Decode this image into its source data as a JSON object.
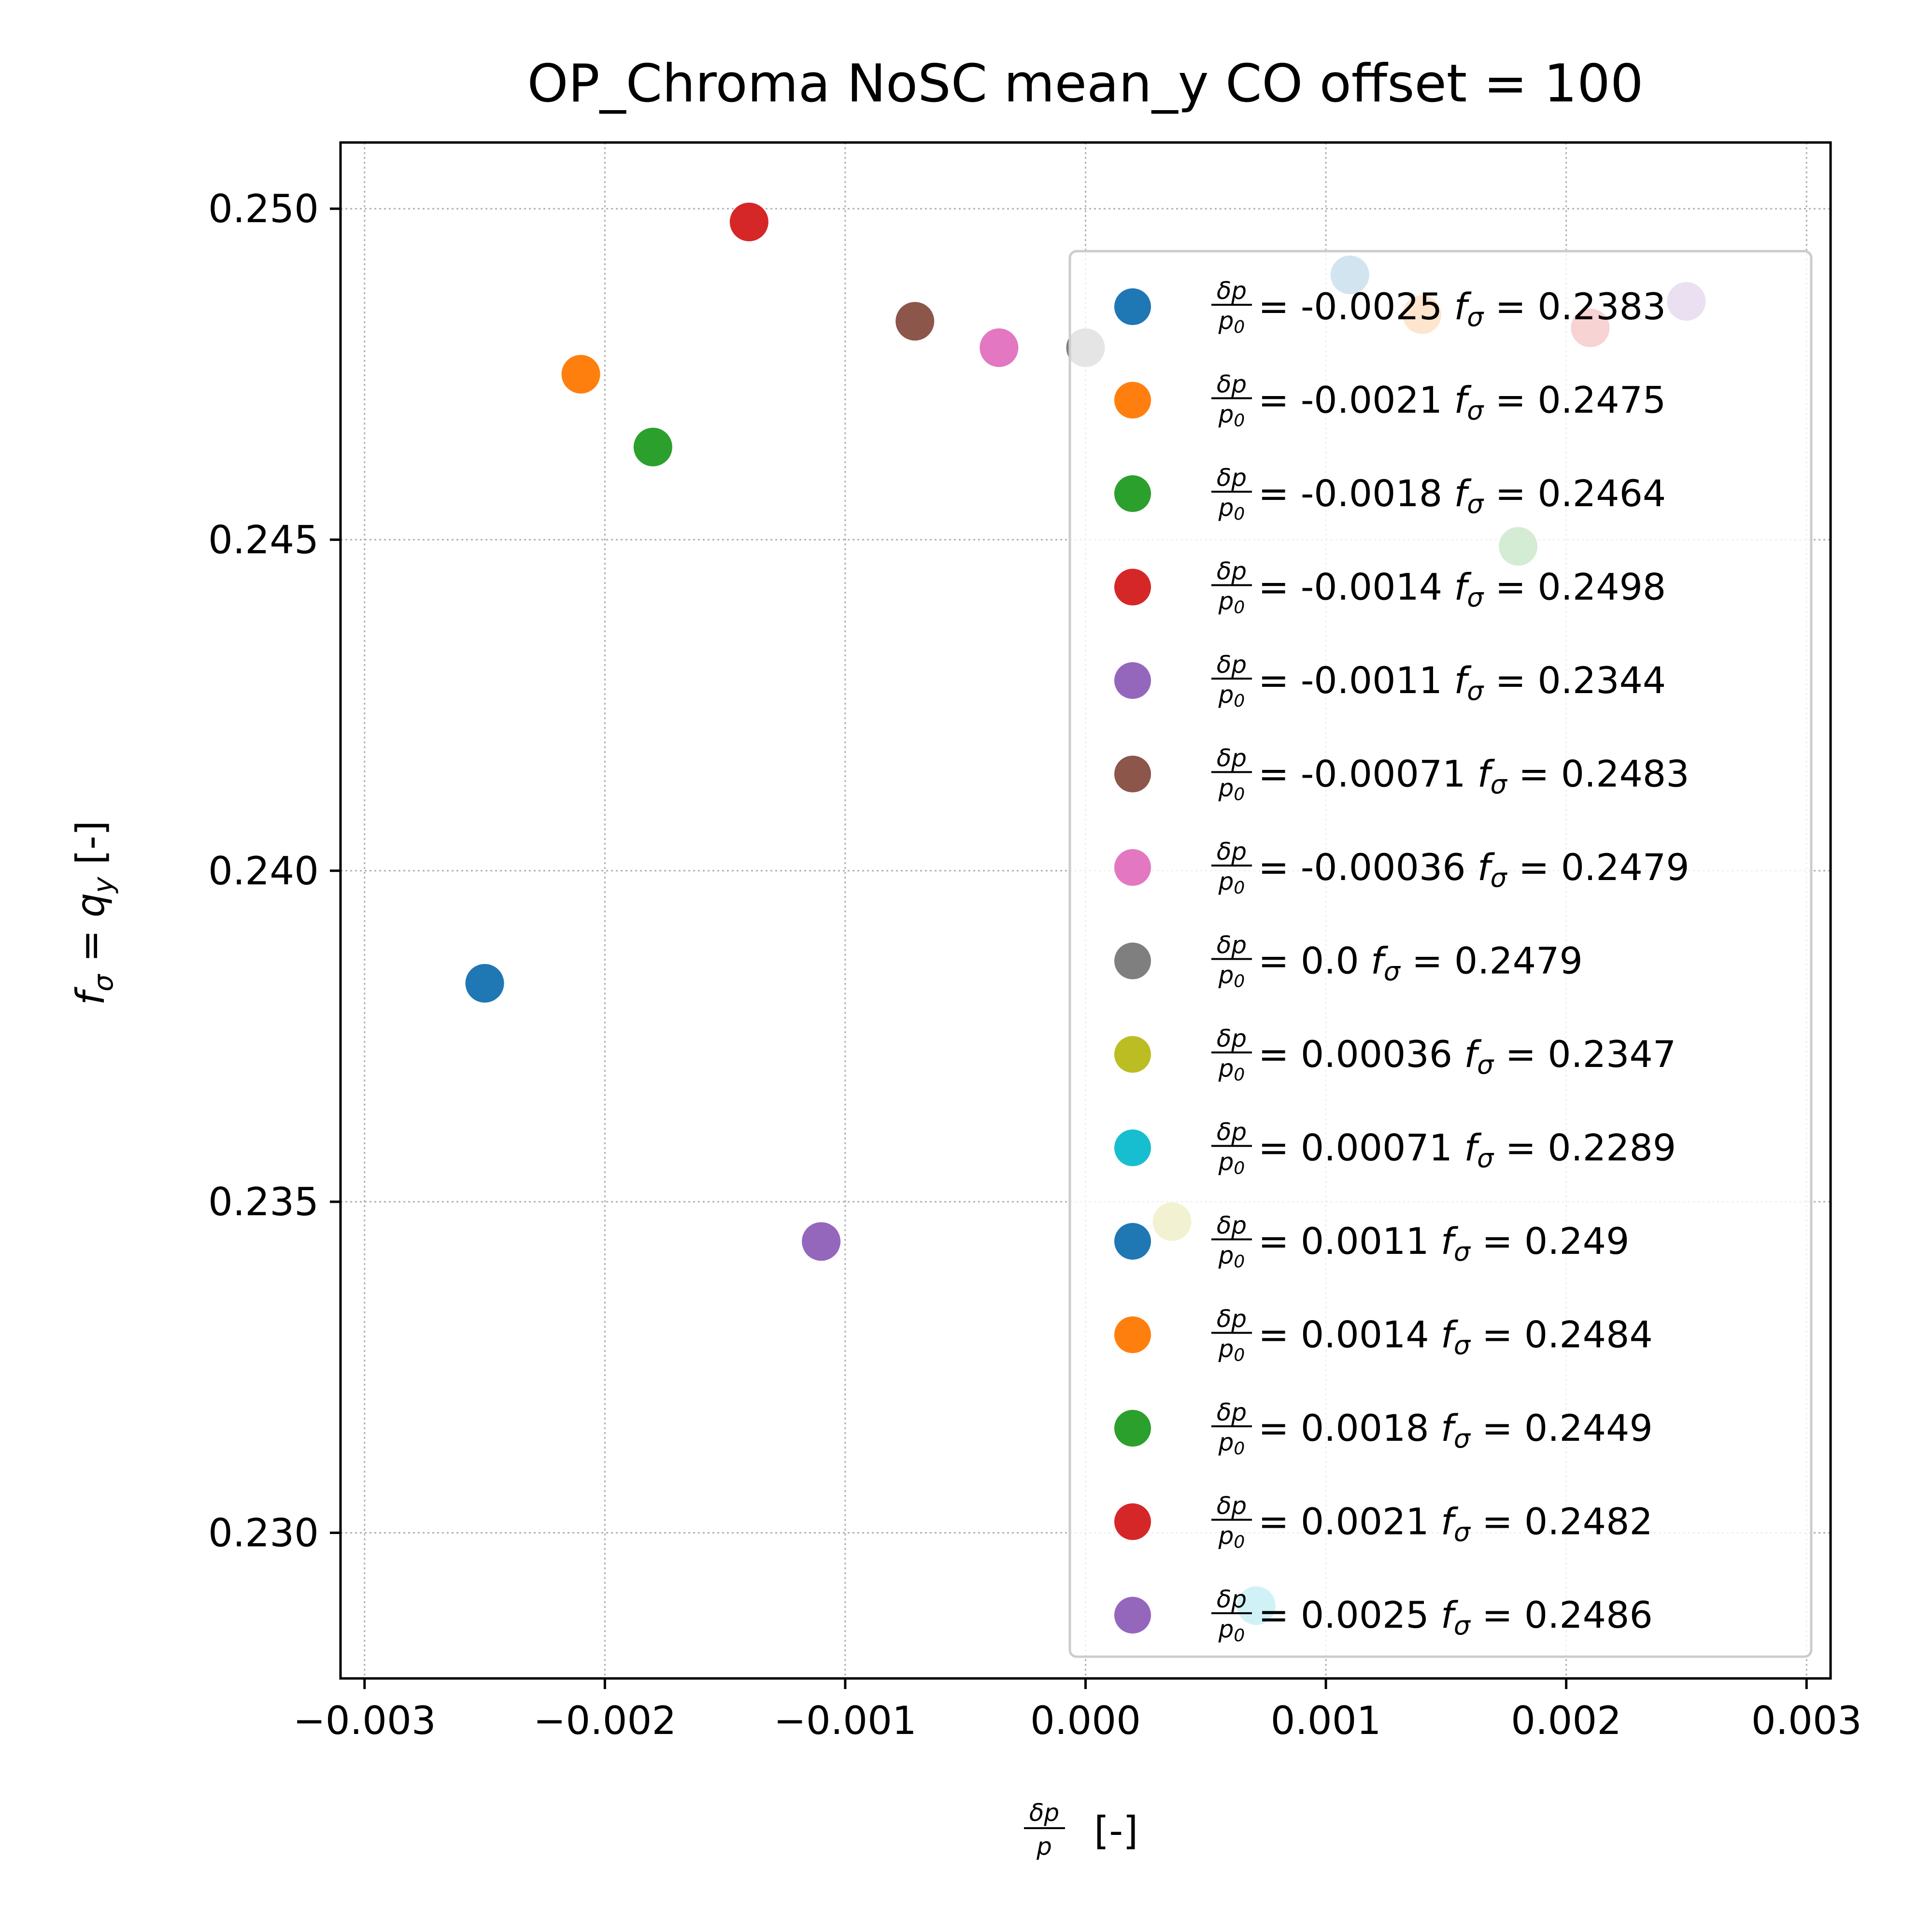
{
  "chart_data": {
    "type": "scatter",
    "title": "OP_Chroma NoSC mean_y CO offset = 100",
    "xlabel": "δp/p [-]",
    "ylabel": "f_σ = q_y [-]",
    "xlim": [
      -0.0031,
      0.0031
    ],
    "ylim": [
      0.2278,
      0.251
    ],
    "xticks": [
      "−0.003",
      "−0.002",
      "−0.001",
      "0.000",
      "0.001",
      "0.002",
      "0.003"
    ],
    "yticks": [
      "0.230",
      "0.235",
      "0.240",
      "0.245",
      "0.250"
    ],
    "grid": true,
    "legend_position": "right",
    "series": [
      {
        "name": "δp/p0 = -0.0025 fσ = 0.2383",
        "dp_label": "-0.0025",
        "fs_label": "0.2383",
        "x": -0.0025,
        "y": 0.2383,
        "color": "#1f77b4"
      },
      {
        "name": "δp/p0 = -0.0021 fσ = 0.2475",
        "dp_label": "-0.0021",
        "fs_label": "0.2475",
        "x": -0.0021,
        "y": 0.2475,
        "color": "#ff7f0e"
      },
      {
        "name": "δp/p0 = -0.0018 fσ = 0.2464",
        "dp_label": "-0.0018",
        "fs_label": "0.2464",
        "x": -0.0018,
        "y": 0.2464,
        "color": "#2ca02c"
      },
      {
        "name": "δp/p0 = -0.0014 fσ = 0.2498",
        "dp_label": "-0.0014",
        "fs_label": "0.2498",
        "x": -0.0014,
        "y": 0.2498,
        "color": "#d62728"
      },
      {
        "name": "δp/p0 = -0.0011 fσ = 0.2344",
        "dp_label": "-0.0011",
        "fs_label": "0.2344",
        "x": -0.0011,
        "y": 0.2344,
        "color": "#9467bd"
      },
      {
        "name": "δp/p0 = -0.00071 fσ = 0.2483",
        "dp_label": "-0.00071",
        "fs_label": "0.2483",
        "x": -0.00071,
        "y": 0.2483,
        "color": "#8c564b"
      },
      {
        "name": "δp/p0 = -0.00036 fσ = 0.2479",
        "dp_label": "-0.00036",
        "fs_label": "0.2479",
        "x": -0.00036,
        "y": 0.2479,
        "color": "#e377c2"
      },
      {
        "name": "δp/p0 = 0.0 fσ = 0.2479",
        "dp_label": "0.0",
        "fs_label": "0.2479",
        "x": 0.0,
        "y": 0.2479,
        "color": "#7f7f7f"
      },
      {
        "name": "δp/p0 = 0.00036 fσ = 0.2347",
        "dp_label": "0.00036",
        "fs_label": "0.2347",
        "x": 0.00036,
        "y": 0.2347,
        "color": "#bcbd22"
      },
      {
        "name": "δp/p0 = 0.00071 fσ = 0.2289",
        "dp_label": "0.00071",
        "fs_label": "0.2289",
        "x": 0.00071,
        "y": 0.2289,
        "color": "#17becf"
      },
      {
        "name": "δp/p0 = 0.0011 fσ = 0.249",
        "dp_label": "0.0011",
        "fs_label": "0.249",
        "x": 0.0011,
        "y": 0.249,
        "color": "#1f77b4"
      },
      {
        "name": "δp/p0 = 0.0014 fσ = 0.2484",
        "dp_label": "0.0014",
        "fs_label": "0.2484",
        "x": 0.0014,
        "y": 0.2484,
        "color": "#ff7f0e"
      },
      {
        "name": "δp/p0 = 0.0018 fσ = 0.2449",
        "dp_label": "0.0018",
        "fs_label": "0.2449",
        "x": 0.0018,
        "y": 0.2449,
        "color": "#2ca02c"
      },
      {
        "name": "δp/p0 = 0.0021 fσ = 0.2482",
        "dp_label": "0.0021",
        "fs_label": "0.2482",
        "x": 0.0021,
        "y": 0.2482,
        "color": "#d62728"
      },
      {
        "name": "δp/p0 = 0.0025 fσ = 0.2486",
        "dp_label": "0.0025",
        "fs_label": "0.2486",
        "x": 0.0025,
        "y": 0.2486,
        "color": "#9467bd"
      }
    ]
  }
}
